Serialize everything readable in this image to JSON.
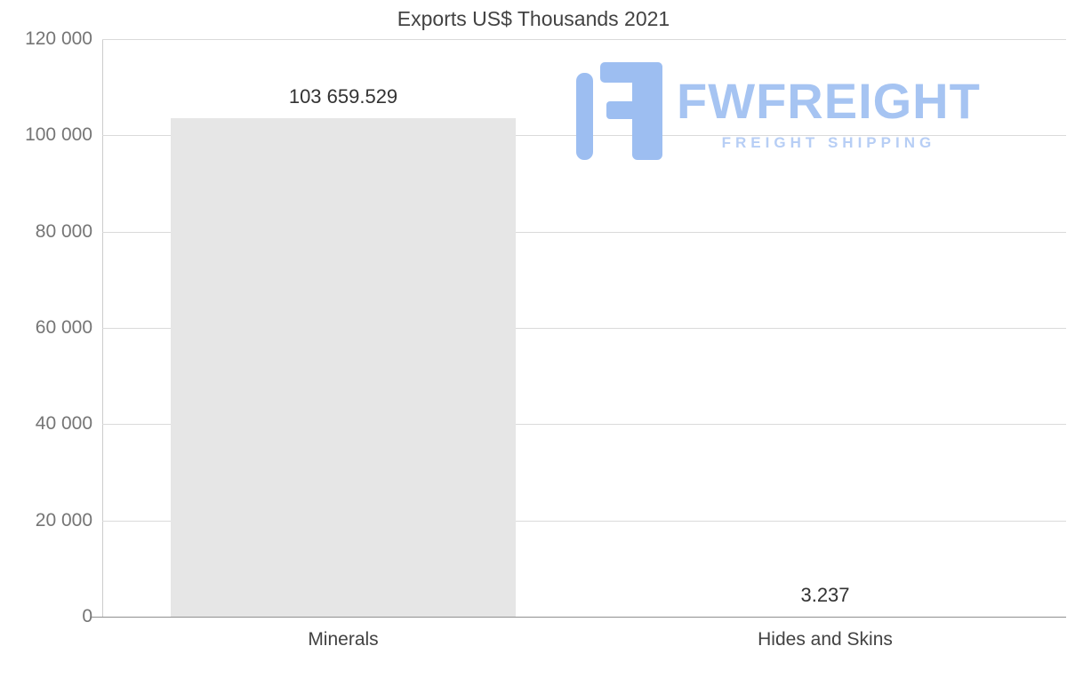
{
  "chart_data": {
    "type": "bar",
    "title": "Exports US$ Thousands 2021",
    "categories": [
      "Minerals",
      "Hides and Skins"
    ],
    "values": [
      103659.529,
      3.237
    ],
    "value_labels": [
      "103 659.529",
      "3.237"
    ],
    "xlabel": "",
    "ylabel": "",
    "ylim": [
      0,
      120000
    ],
    "ytick_interval": 20000,
    "ytick_labels": [
      "120 000",
      "100 000",
      "80 000",
      "60 000",
      "40 000",
      "20 000",
      "0"
    ],
    "grid": true,
    "legend": "none",
    "bar_color": "#e6e6e6",
    "grid_color": "#dadada"
  },
  "watermark": {
    "brand": "FWFREIGHT",
    "tagline": "FREIGHT SHIPPING",
    "brand_color": "#a6c4f2",
    "tagline_color": "#b7cef5",
    "icon_color": "#9dbef1"
  }
}
